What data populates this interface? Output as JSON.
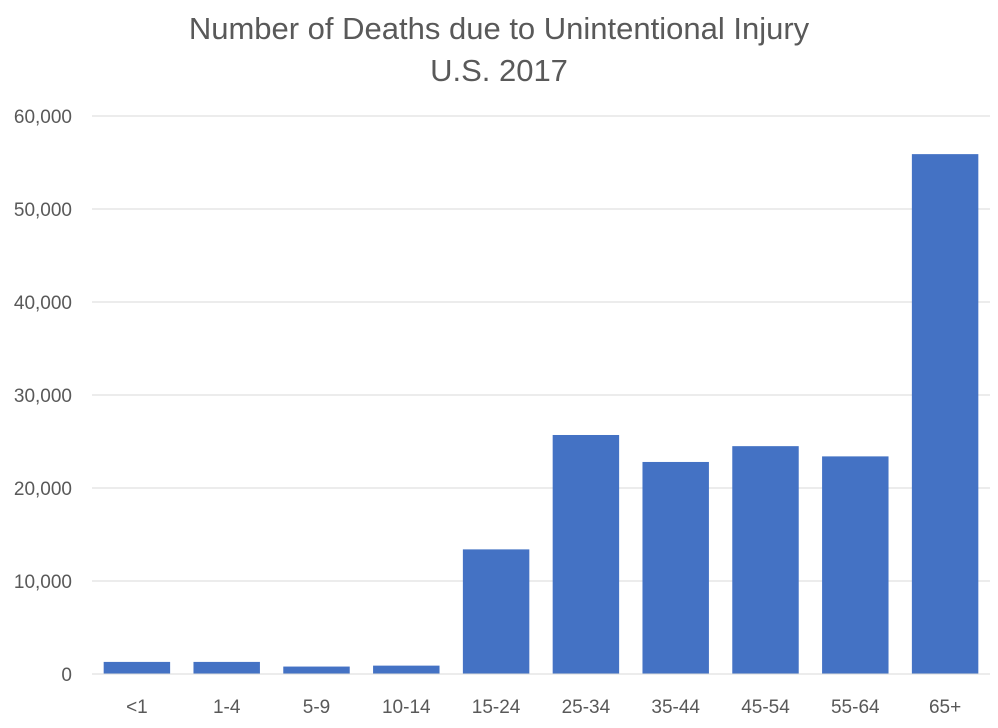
{
  "chart_data": {
    "type": "bar",
    "title": "Number of Deaths due to Unintentional Injury",
    "subtitle": "U.S. 2017",
    "xlabel": "",
    "ylabel": "",
    "categories": [
      "<1",
      "1-4",
      "5-9",
      "10-14",
      "15-24",
      "25-34",
      "35-44",
      "45-54",
      "55-64",
      "65+"
    ],
    "values": [
      1300,
      1300,
      800,
      900,
      13400,
      25700,
      22800,
      24500,
      23400,
      55900
    ],
    "ylim": [
      0,
      60000
    ],
    "yticks": [
      "0",
      "10,000",
      "20,000",
      "30,000",
      "40,000",
      "50,000",
      "60,000"
    ],
    "grid": true,
    "legend": "none",
    "bar_color": "#4472C4",
    "grid_color": "#D9D9D9",
    "text_color": "#595959"
  }
}
